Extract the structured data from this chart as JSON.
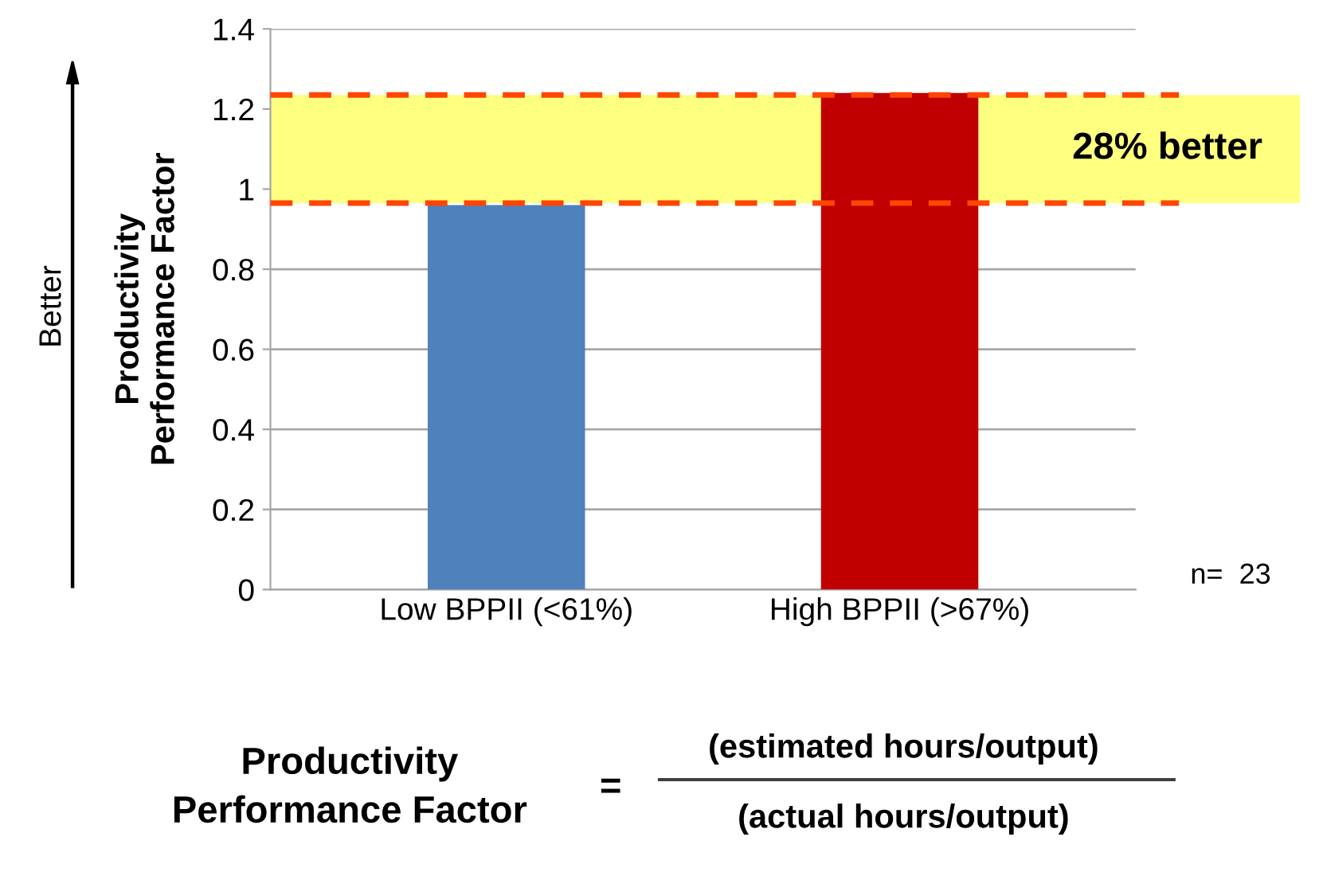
{
  "chart_data": {
    "type": "bar",
    "ylabel": "Productivity\nPerformance Factor",
    "categories": [
      "Low BPPII (<61%)",
      "High BPPII (>67%)"
    ],
    "values": [
      0.96,
      1.24
    ],
    "colors": [
      "#4f81bd",
      "#c00000"
    ],
    "ylim": [
      0,
      1.4
    ],
    "yticks": [
      0,
      0.2,
      0.4,
      0.6,
      0.8,
      1,
      1.2,
      1.4
    ],
    "grid": "y",
    "ref_lines": [
      {
        "axis": "y",
        "value": 0.965,
        "color": "#ff4500",
        "line_style": "dashed"
      },
      {
        "axis": "y",
        "value": 1.235,
        "color": "#ff4500",
        "line_style": "dashed"
      }
    ],
    "bands": [
      {
        "axis": "y",
        "from": 0.965,
        "to": 1.235,
        "label": "28% better",
        "color": "#ffff80"
      }
    ],
    "annotations": [
      "n=  23",
      "Better",
      "Productivity\nPerformance Factor",
      "=",
      "(estimated hours/output)",
      "(actual hours/output)"
    ]
  }
}
